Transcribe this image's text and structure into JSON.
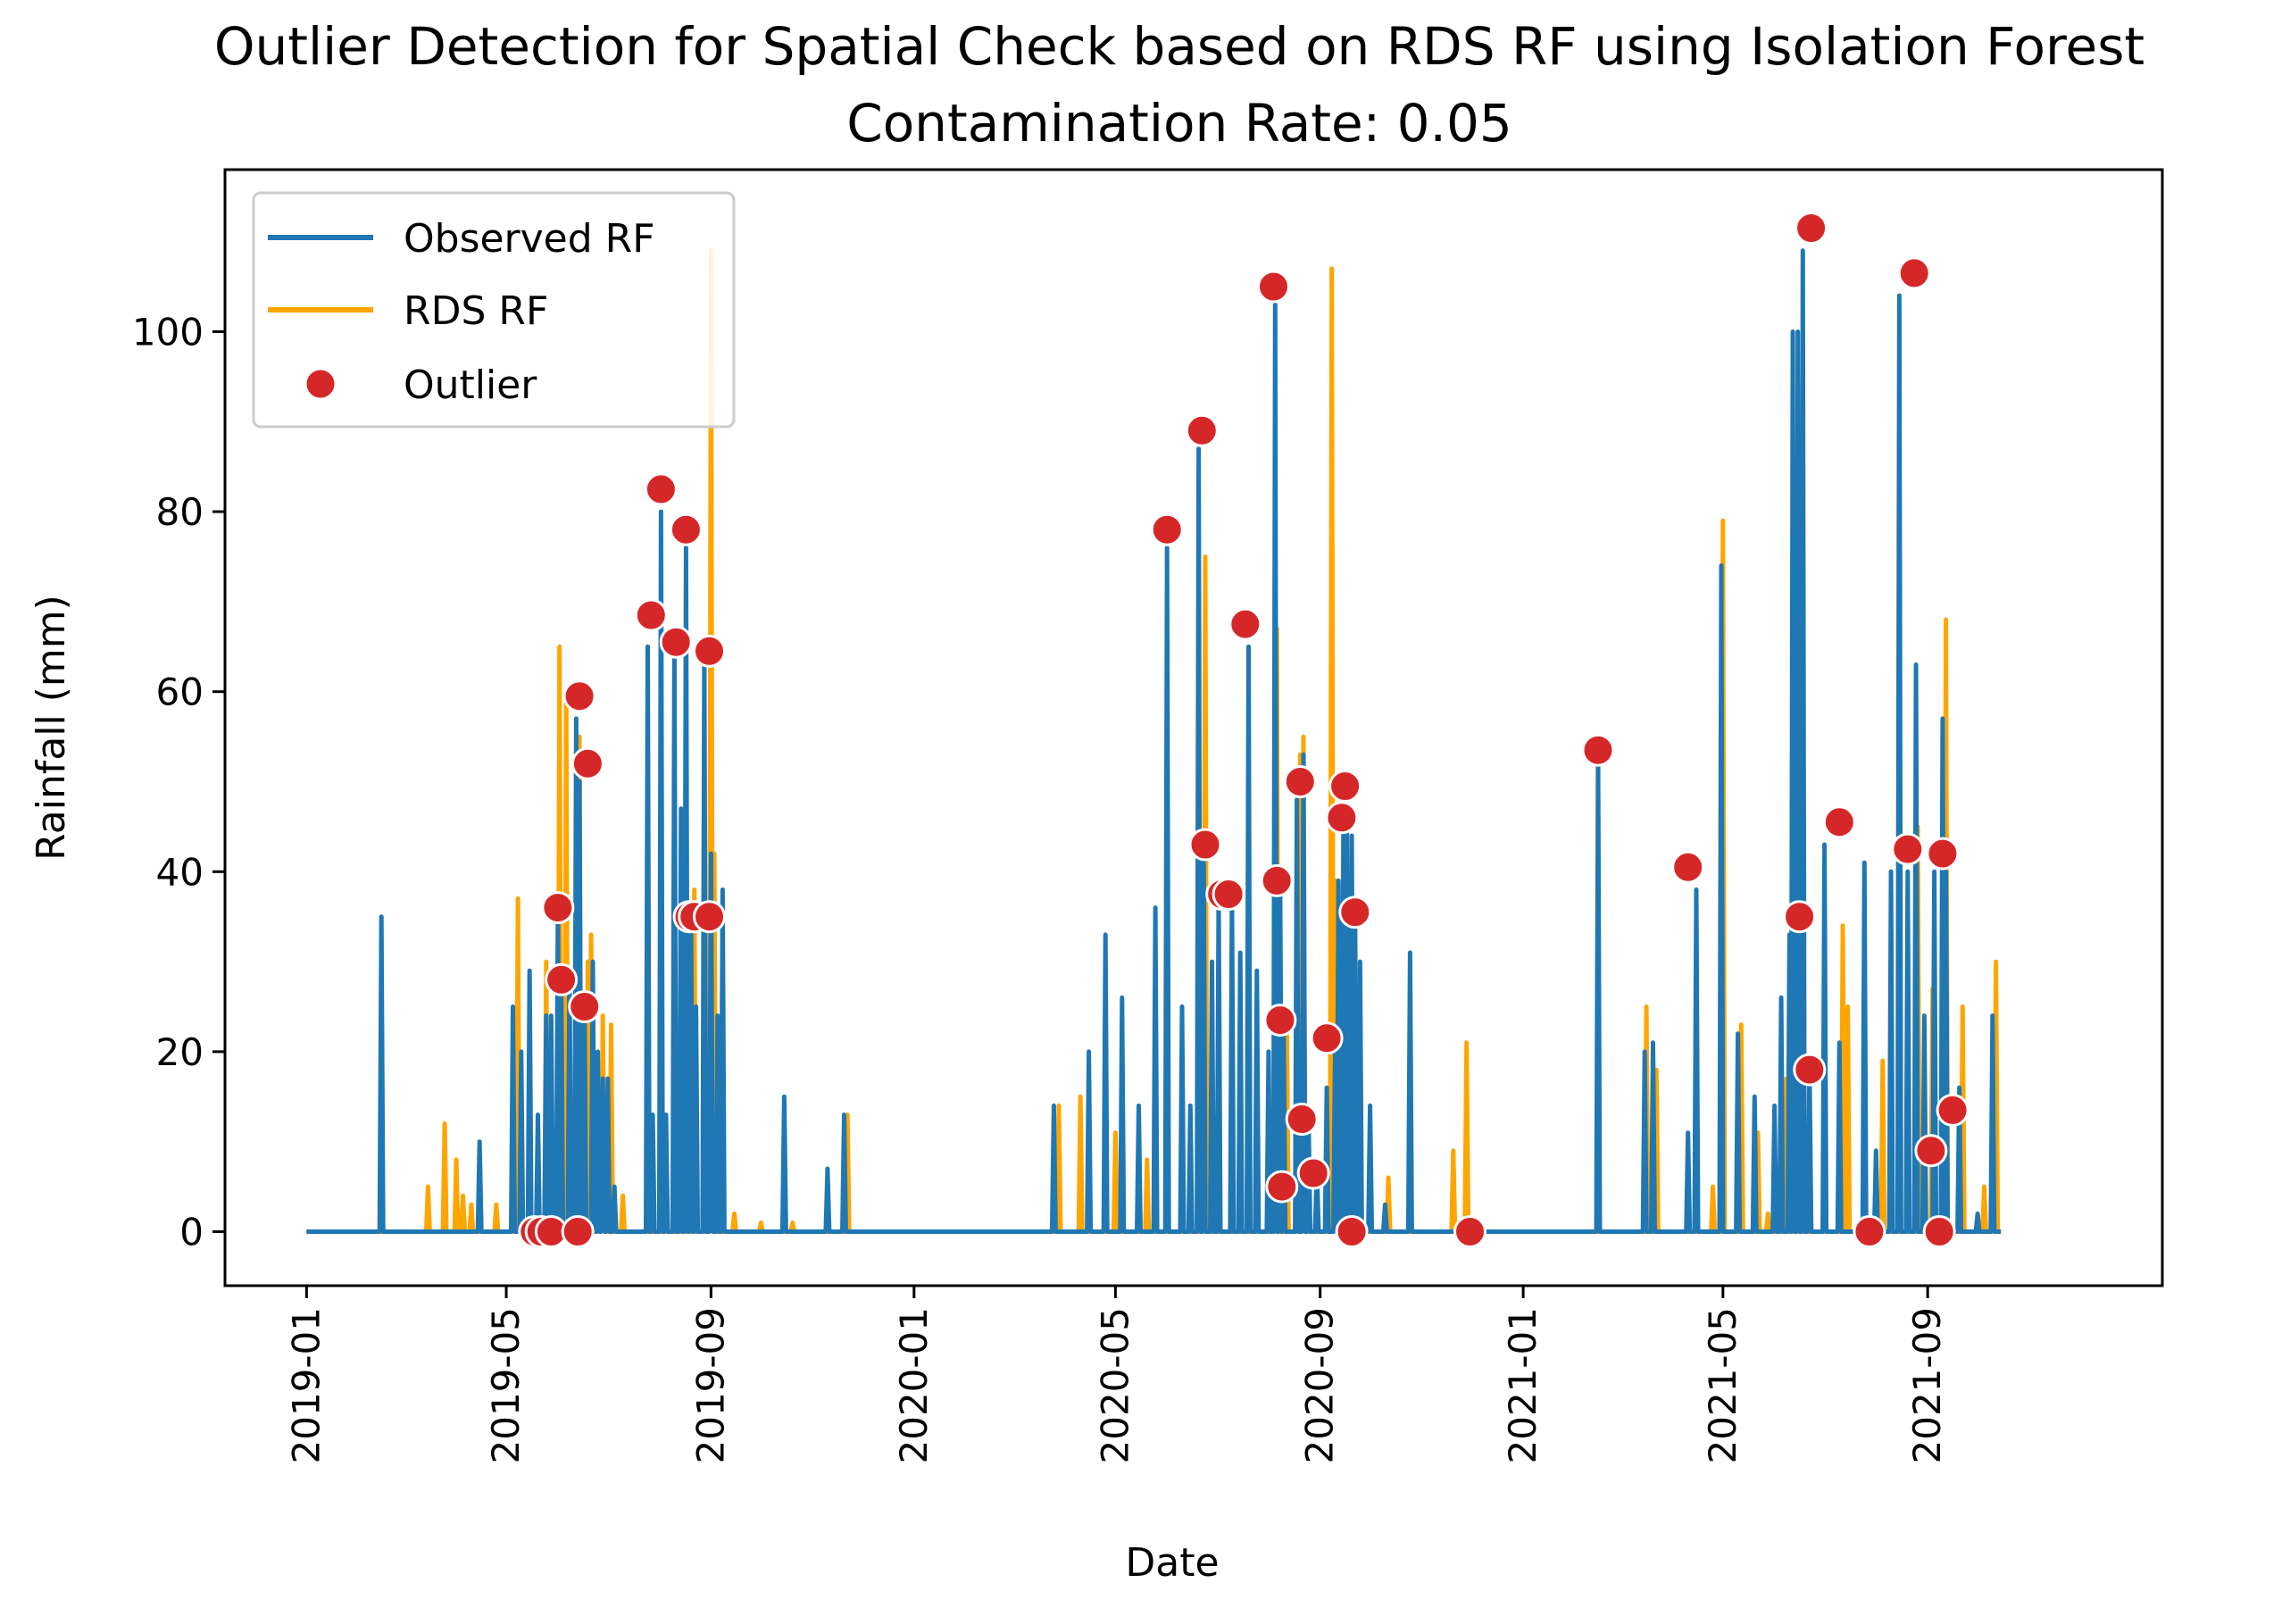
{
  "chart_data": {
    "type": "line",
    "title": "Outlier Detection for Spatial Check based on RDS RF using Isolation Forest",
    "subtitle": "Contamination Rate: 0.05",
    "xlabel": "Date",
    "ylabel": "Rainfall (mm)",
    "xlim": [
      "2018-11-13",
      "2022-01-20"
    ],
    "ylim": [
      -6,
      118
    ],
    "x_ticks": [
      "2019-01",
      "2019-05",
      "2019-09",
      "2020-01",
      "2020-05",
      "2020-09",
      "2021-01",
      "2021-05",
      "2021-09"
    ],
    "y_ticks": [
      0,
      20,
      40,
      60,
      80,
      100
    ],
    "grid": false,
    "legend": {
      "position": "top-left",
      "entries": [
        "Observed RF",
        "RDS RF",
        "Outlier"
      ]
    },
    "colors": {
      "observed": "#1f77b4",
      "rds": "#ffa500",
      "outlier": "#d62728"
    },
    "series": [
      {
        "name": "Observed RF",
        "points": [
          [
            "2019-02-15",
            35
          ],
          [
            "2019-04-15",
            10
          ],
          [
            "2019-05-05",
            25
          ],
          [
            "2019-05-10",
            20
          ],
          [
            "2019-05-15",
            29
          ],
          [
            "2019-05-20",
            13
          ],
          [
            "2019-05-25",
            24
          ],
          [
            "2019-05-28",
            24
          ],
          [
            "2019-06-01",
            36
          ],
          [
            "2019-06-03",
            28
          ],
          [
            "2019-06-08",
            29
          ],
          [
            "2019-06-12",
            57
          ],
          [
            "2019-06-14",
            50
          ],
          [
            "2019-06-17",
            25
          ],
          [
            "2019-06-22",
            30
          ],
          [
            "2019-06-25",
            20
          ],
          [
            "2019-06-28",
            17
          ],
          [
            "2019-07-01",
            17
          ],
          [
            "2019-07-05",
            5
          ],
          [
            "2019-07-25",
            65
          ],
          [
            "2019-07-28",
            13
          ],
          [
            "2019-08-02",
            80
          ],
          [
            "2019-08-05",
            13
          ],
          [
            "2019-08-10",
            65
          ],
          [
            "2019-08-14",
            47
          ],
          [
            "2019-08-17",
            76
          ],
          [
            "2019-08-20",
            35
          ],
          [
            "2019-08-23",
            25
          ],
          [
            "2019-08-28",
            64
          ],
          [
            "2019-09-01",
            42
          ],
          [
            "2019-09-05",
            24
          ],
          [
            "2019-09-08",
            38
          ],
          [
            "2019-10-15",
            15
          ],
          [
            "2019-11-10",
            7
          ],
          [
            "2019-11-20",
            13
          ],
          [
            "2020-03-25",
            14
          ],
          [
            "2020-04-15",
            20
          ],
          [
            "2020-04-25",
            33
          ],
          [
            "2020-05-05",
            26
          ],
          [
            "2020-05-15",
            14
          ],
          [
            "2020-05-25",
            36
          ],
          [
            "2020-06-01",
            76
          ],
          [
            "2020-06-10",
            25
          ],
          [
            "2020-06-15",
            14
          ],
          [
            "2020-06-20",
            87
          ],
          [
            "2020-06-23",
            42
          ],
          [
            "2020-06-28",
            30
          ],
          [
            "2020-07-02",
            37
          ],
          [
            "2020-07-10",
            37
          ],
          [
            "2020-07-15",
            31
          ],
          [
            "2020-07-20",
            65
          ],
          [
            "2020-07-25",
            29
          ],
          [
            "2020-08-01",
            20
          ],
          [
            "2020-08-05",
            103
          ],
          [
            "2020-08-08",
            38
          ],
          [
            "2020-08-10",
            23
          ],
          [
            "2020-08-18",
            48
          ],
          [
            "2020-08-22",
            53
          ],
          [
            "2020-08-25",
            13
          ],
          [
            "2020-08-30",
            7
          ],
          [
            "2020-09-05",
            16
          ],
          [
            "2020-09-10",
            21
          ],
          [
            "2020-09-12",
            39
          ],
          [
            "2020-09-15",
            46
          ],
          [
            "2020-09-17",
            49
          ],
          [
            "2020-09-20",
            44
          ],
          [
            "2020-09-22",
            35
          ],
          [
            "2020-09-25",
            30
          ],
          [
            "2020-10-01",
            14
          ],
          [
            "2020-10-10",
            3
          ],
          [
            "2020-10-25",
            31
          ],
          [
            "2021-02-15",
            53
          ],
          [
            "2021-03-15",
            20
          ],
          [
            "2021-03-20",
            21
          ],
          [
            "2021-04-10",
            11
          ],
          [
            "2021-04-15",
            38
          ],
          [
            "2021-04-30",
            74
          ],
          [
            "2021-05-10",
            22
          ],
          [
            "2021-05-20",
            15
          ],
          [
            "2021-06-01",
            14
          ],
          [
            "2021-06-05",
            26
          ],
          [
            "2021-06-10",
            33
          ],
          [
            "2021-06-12",
            100
          ],
          [
            "2021-06-15",
            100
          ],
          [
            "2021-06-18",
            109
          ],
          [
            "2021-06-22",
            18
          ],
          [
            "2021-07-01",
            43
          ],
          [
            "2021-07-10",
            21
          ],
          [
            "2021-07-25",
            41
          ],
          [
            "2021-08-01",
            9
          ],
          [
            "2021-08-10",
            40
          ],
          [
            "2021-08-15",
            104
          ],
          [
            "2021-08-20",
            40
          ],
          [
            "2021-08-25",
            63
          ],
          [
            "2021-08-30",
            24
          ],
          [
            "2021-09-05",
            40
          ],
          [
            "2021-09-10",
            57
          ],
          [
            "2021-09-12",
            40
          ],
          [
            "2021-09-20",
            16
          ],
          [
            "2021-10-01",
            2
          ],
          [
            "2021-10-10",
            24
          ]
        ]
      },
      {
        "name": "RDS RF",
        "points": [
          [
            "2019-03-15",
            5
          ],
          [
            "2019-03-25",
            12
          ],
          [
            "2019-04-01",
            8
          ],
          [
            "2019-04-05",
            4
          ],
          [
            "2019-04-10",
            3
          ],
          [
            "2019-04-25",
            3
          ],
          [
            "2019-05-08",
            37
          ],
          [
            "2019-05-25",
            30
          ],
          [
            "2019-06-02",
            65
          ],
          [
            "2019-06-06",
            60
          ],
          [
            "2019-06-14",
            55
          ],
          [
            "2019-06-19",
            30
          ],
          [
            "2019-06-21",
            33
          ],
          [
            "2019-06-28",
            24
          ],
          [
            "2019-07-03",
            23
          ],
          [
            "2019-07-10",
            4
          ],
          [
            "2019-08-22",
            38
          ],
          [
            "2019-09-01",
            109
          ],
          [
            "2019-09-03",
            42
          ],
          [
            "2019-09-15",
            2
          ],
          [
            "2019-10-01",
            1
          ],
          [
            "2019-10-20",
            1
          ],
          [
            "2019-11-22",
            13
          ],
          [
            "2020-03-28",
            14
          ],
          [
            "2020-04-10",
            15
          ],
          [
            "2020-05-01",
            11
          ],
          [
            "2020-05-20",
            8
          ],
          [
            "2020-06-24",
            75
          ],
          [
            "2020-08-06",
            67
          ],
          [
            "2020-08-12",
            22
          ],
          [
            "2020-08-20",
            53
          ],
          [
            "2020-08-22",
            55
          ],
          [
            "2020-09-08",
            107
          ],
          [
            "2020-09-10",
            39
          ],
          [
            "2020-10-12",
            6
          ],
          [
            "2020-11-20",
            9
          ],
          [
            "2020-11-28",
            21
          ],
          [
            "2021-03-16",
            25
          ],
          [
            "2021-03-22",
            18
          ],
          [
            "2021-04-25",
            5
          ],
          [
            "2021-05-01",
            79
          ],
          [
            "2021-05-12",
            23
          ],
          [
            "2021-05-22",
            11
          ],
          [
            "2021-05-28",
            2
          ],
          [
            "2021-06-02",
            2
          ],
          [
            "2021-06-08",
            17
          ],
          [
            "2021-06-13",
            83
          ],
          [
            "2021-07-12",
            34
          ],
          [
            "2021-07-15",
            25
          ],
          [
            "2021-08-05",
            19
          ],
          [
            "2021-08-26",
            45
          ],
          [
            "2021-09-04",
            27
          ],
          [
            "2021-09-12",
            68
          ],
          [
            "2021-09-22",
            25
          ],
          [
            "2021-10-05",
            5
          ],
          [
            "2021-10-12",
            30
          ]
        ]
      }
    ],
    "outliers": [
      [
        "2019-05-18",
        0
      ],
      [
        "2019-05-22",
        0
      ],
      [
        "2019-05-28",
        0
      ],
      [
        "2019-06-01",
        36
      ],
      [
        "2019-06-03",
        28
      ],
      [
        "2019-06-13",
        0
      ],
      [
        "2019-06-14",
        59.5
      ],
      [
        "2019-06-17",
        25
      ],
      [
        "2019-06-19",
        52
      ],
      [
        "2019-07-27",
        68.5
      ],
      [
        "2019-08-02",
        82.5
      ],
      [
        "2019-08-11",
        65.5
      ],
      [
        "2019-08-17",
        78
      ],
      [
        "2019-08-19",
        35
      ],
      [
        "2019-08-22",
        35
      ],
      [
        "2019-08-31",
        64.5
      ],
      [
        "2019-08-31",
        35
      ],
      [
        "2020-06-01",
        78
      ],
      [
        "2020-06-22",
        89
      ],
      [
        "2020-06-24",
        43
      ],
      [
        "2020-07-04",
        37.5
      ],
      [
        "2020-07-08",
        37.5
      ],
      [
        "2020-07-18",
        67.5
      ],
      [
        "2020-08-04",
        105
      ],
      [
        "2020-08-06",
        39
      ],
      [
        "2020-08-08",
        23.5
      ],
      [
        "2020-08-09",
        5
      ],
      [
        "2020-08-20",
        50
      ],
      [
        "2020-08-21",
        12.5
      ],
      [
        "2020-08-28",
        6.5
      ],
      [
        "2020-09-05",
        21.5
      ],
      [
        "2020-09-14",
        46
      ],
      [
        "2020-09-16",
        49.5
      ],
      [
        "2020-09-20",
        0
      ],
      [
        "2020-09-22",
        35.5
      ],
      [
        "2020-11-30",
        0
      ],
      [
        "2021-02-15",
        53.5
      ],
      [
        "2021-04-10",
        40.5
      ],
      [
        "2021-06-16",
        35
      ],
      [
        "2021-06-22",
        18
      ],
      [
        "2021-06-23",
        111.5
      ],
      [
        "2021-07-10",
        45.5
      ],
      [
        "2021-07-28",
        0
      ],
      [
        "2021-08-20",
        42.5
      ],
      [
        "2021-08-24",
        106.5
      ],
      [
        "2021-09-03",
        9
      ],
      [
        "2021-09-08",
        0
      ],
      [
        "2021-09-10",
        42
      ],
      [
        "2021-09-16",
        13.5
      ]
    ]
  }
}
